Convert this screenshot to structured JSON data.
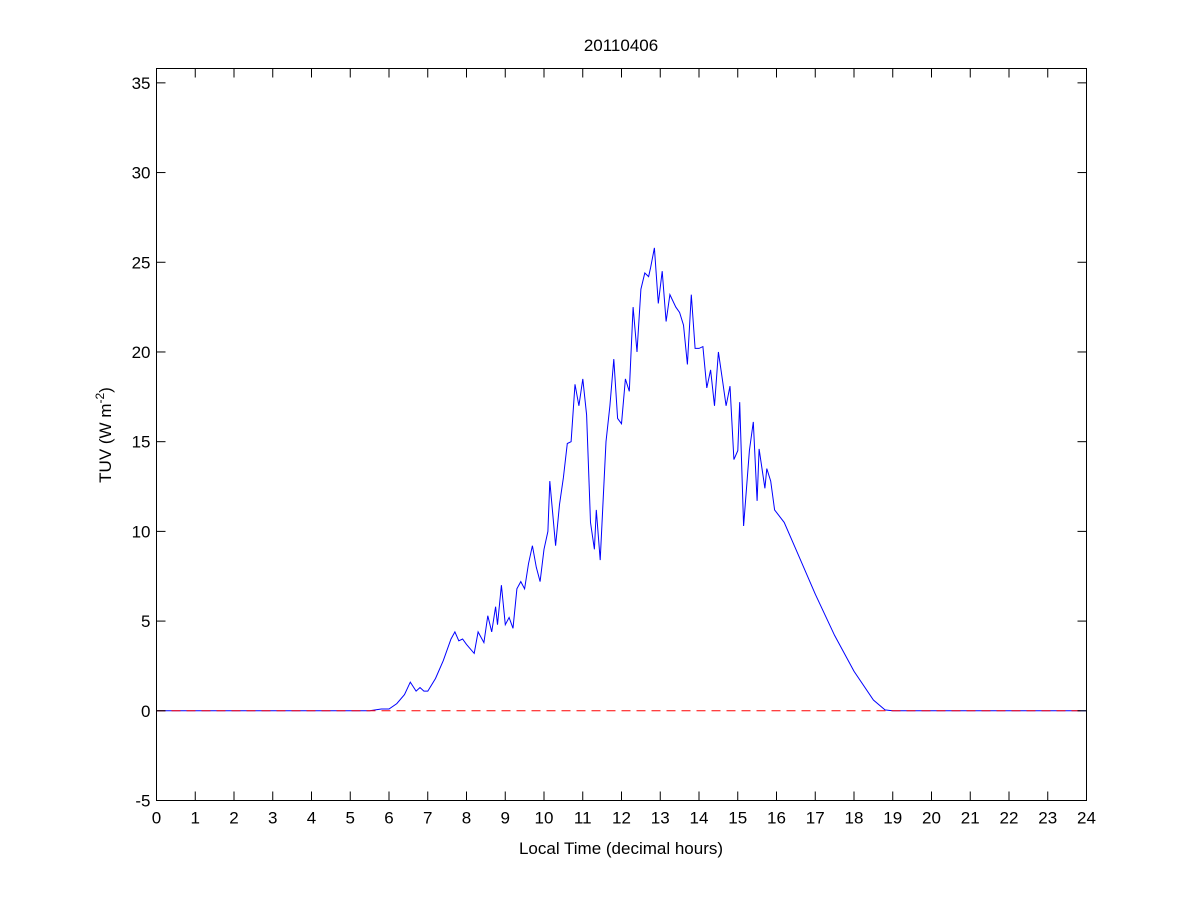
{
  "chart_data": {
    "type": "line",
    "title": "20110406",
    "xlabel": "Local Time (decimal hours)",
    "ylabel": "TUV (W m",
    "ylabel_sup": "-2",
    "ylabel_end": ")",
    "xlim": [
      0,
      24
    ],
    "ylim": [
      -5,
      35.8
    ],
    "xticks": [
      0,
      1,
      2,
      3,
      4,
      5,
      6,
      7,
      8,
      9,
      10,
      11,
      12,
      13,
      14,
      15,
      16,
      17,
      18,
      19,
      20,
      21,
      22,
      23,
      24
    ],
    "yticks": [
      -5,
      0,
      5,
      10,
      15,
      20,
      25,
      30,
      35
    ],
    "grid": false,
    "series": [
      {
        "name": "TUV",
        "color": "#0000ff",
        "style": "solid",
        "x": [
          0,
          5.5,
          5.8,
          6.0,
          6.2,
          6.4,
          6.55,
          6.7,
          6.8,
          6.9,
          7.0,
          7.2,
          7.4,
          7.6,
          7.7,
          7.8,
          7.9,
          8.0,
          8.2,
          8.3,
          8.45,
          8.55,
          8.65,
          8.75,
          8.8,
          8.9,
          9.0,
          9.1,
          9.2,
          9.3,
          9.4,
          9.5,
          9.6,
          9.7,
          9.8,
          9.9,
          10.0,
          10.1,
          10.15,
          10.3,
          10.4,
          10.5,
          10.6,
          10.7,
          10.8,
          10.9,
          11.0,
          11.1,
          11.2,
          11.3,
          11.35,
          11.45,
          11.6,
          11.7,
          11.8,
          11.9,
          12.0,
          12.1,
          12.2,
          12.3,
          12.4,
          12.5,
          12.6,
          12.7,
          12.75,
          12.85,
          12.95,
          13.05,
          13.15,
          13.25,
          13.4,
          13.5,
          13.6,
          13.7,
          13.8,
          13.9,
          14.0,
          14.1,
          14.2,
          14.3,
          14.4,
          14.5,
          14.6,
          14.7,
          14.8,
          14.9,
          15.0,
          15.05,
          15.15,
          15.3,
          15.4,
          15.5,
          15.55,
          15.7,
          15.75,
          15.85,
          15.95,
          16.2,
          16.5,
          17.0,
          17.5,
          18.0,
          18.5,
          18.8,
          19.0,
          24
        ],
        "y": [
          0,
          0,
          0.1,
          0.1,
          0.4,
          0.9,
          1.6,
          1.1,
          1.3,
          1.1,
          1.1,
          1.8,
          2.8,
          4.0,
          4.4,
          3.9,
          4.0,
          3.7,
          3.2,
          4.4,
          3.8,
          5.3,
          4.4,
          5.8,
          4.8,
          7.0,
          4.8,
          5.2,
          4.6,
          6.8,
          7.2,
          6.8,
          8.2,
          9.2,
          8.0,
          7.2,
          9.0,
          10.0,
          12.8,
          9.2,
          11.5,
          13.0,
          14.9,
          15.0,
          18.2,
          17.0,
          18.5,
          16.5,
          10.5,
          9.0,
          11.2,
          8.4,
          15.0,
          17.0,
          19.6,
          16.3,
          16.0,
          18.5,
          17.8,
          22.5,
          20.0,
          23.5,
          24.4,
          24.2,
          24.7,
          25.8,
          22.7,
          24.5,
          21.7,
          23.2,
          22.5,
          22.2,
          21.5,
          19.3,
          23.2,
          20.2,
          20.2,
          20.3,
          18.0,
          19.0,
          17.0,
          20.0,
          18.5,
          17.0,
          18.1,
          14.0,
          14.5,
          17.2,
          10.3,
          14.5,
          16.1,
          11.7,
          14.6,
          12.4,
          13.5,
          12.8,
          11.2,
          10.5,
          9.0,
          6.5,
          4.2,
          2.2,
          0.6,
          0.05,
          0,
          0
        ]
      },
      {
        "name": "zero line",
        "color": "#ff0000",
        "style": "dashed",
        "x": [
          0,
          24
        ],
        "y": [
          0,
          0
        ]
      }
    ]
  }
}
